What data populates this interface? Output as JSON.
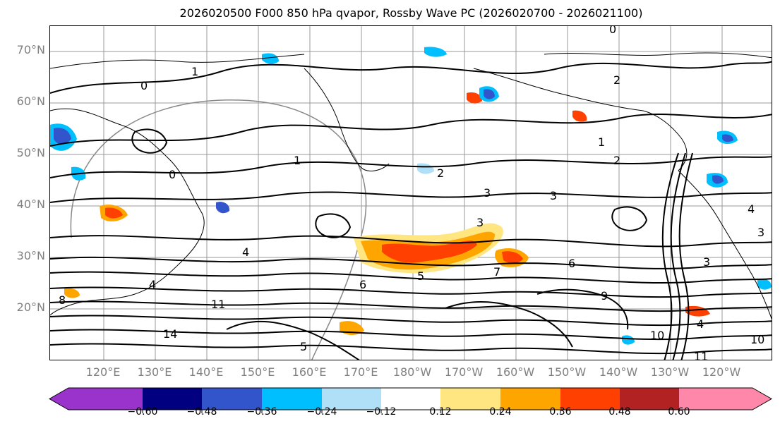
{
  "title": "2026020500 F000 850 hPa qvapor, Rossby Wave PC (2026020700 - 2026021100)",
  "lat_labels": [
    "70°N",
    "60°N",
    "50°N",
    "40°N",
    "30°N",
    "20°N"
  ],
  "lon_labels": [
    "120°E",
    "130°E",
    "140°E",
    "150°E",
    "160°E",
    "170°E",
    "180°W",
    "170°W",
    "160°W",
    "150°W",
    "140°W",
    "130°W",
    "120°W"
  ],
  "colorbar": {
    "colors": [
      "#9933cc",
      "#000080",
      "#3355cc",
      "#00bfff",
      "#b0e0f8",
      "#ffffff",
      "#ffe680",
      "#ffa500",
      "#ff4000",
      "#b22222",
      "#ff88aa"
    ],
    "tick_labels": [
      "−0.60",
      "−0.48",
      "−0.36",
      "−0.24",
      "−0.12",
      "0.12",
      "0.24",
      "0.36",
      "0.48",
      "0.60"
    ]
  },
  "contour_labels": [
    "0",
    "0",
    "1",
    "1",
    "2",
    "2",
    "3",
    "3",
    "3",
    "4",
    "4",
    "5",
    "6",
    "6",
    "7",
    "8",
    "9",
    "10",
    "11",
    "14",
    "0",
    "1",
    "2",
    "3",
    "4",
    "5",
    "10",
    "11",
    "3",
    "4"
  ]
}
